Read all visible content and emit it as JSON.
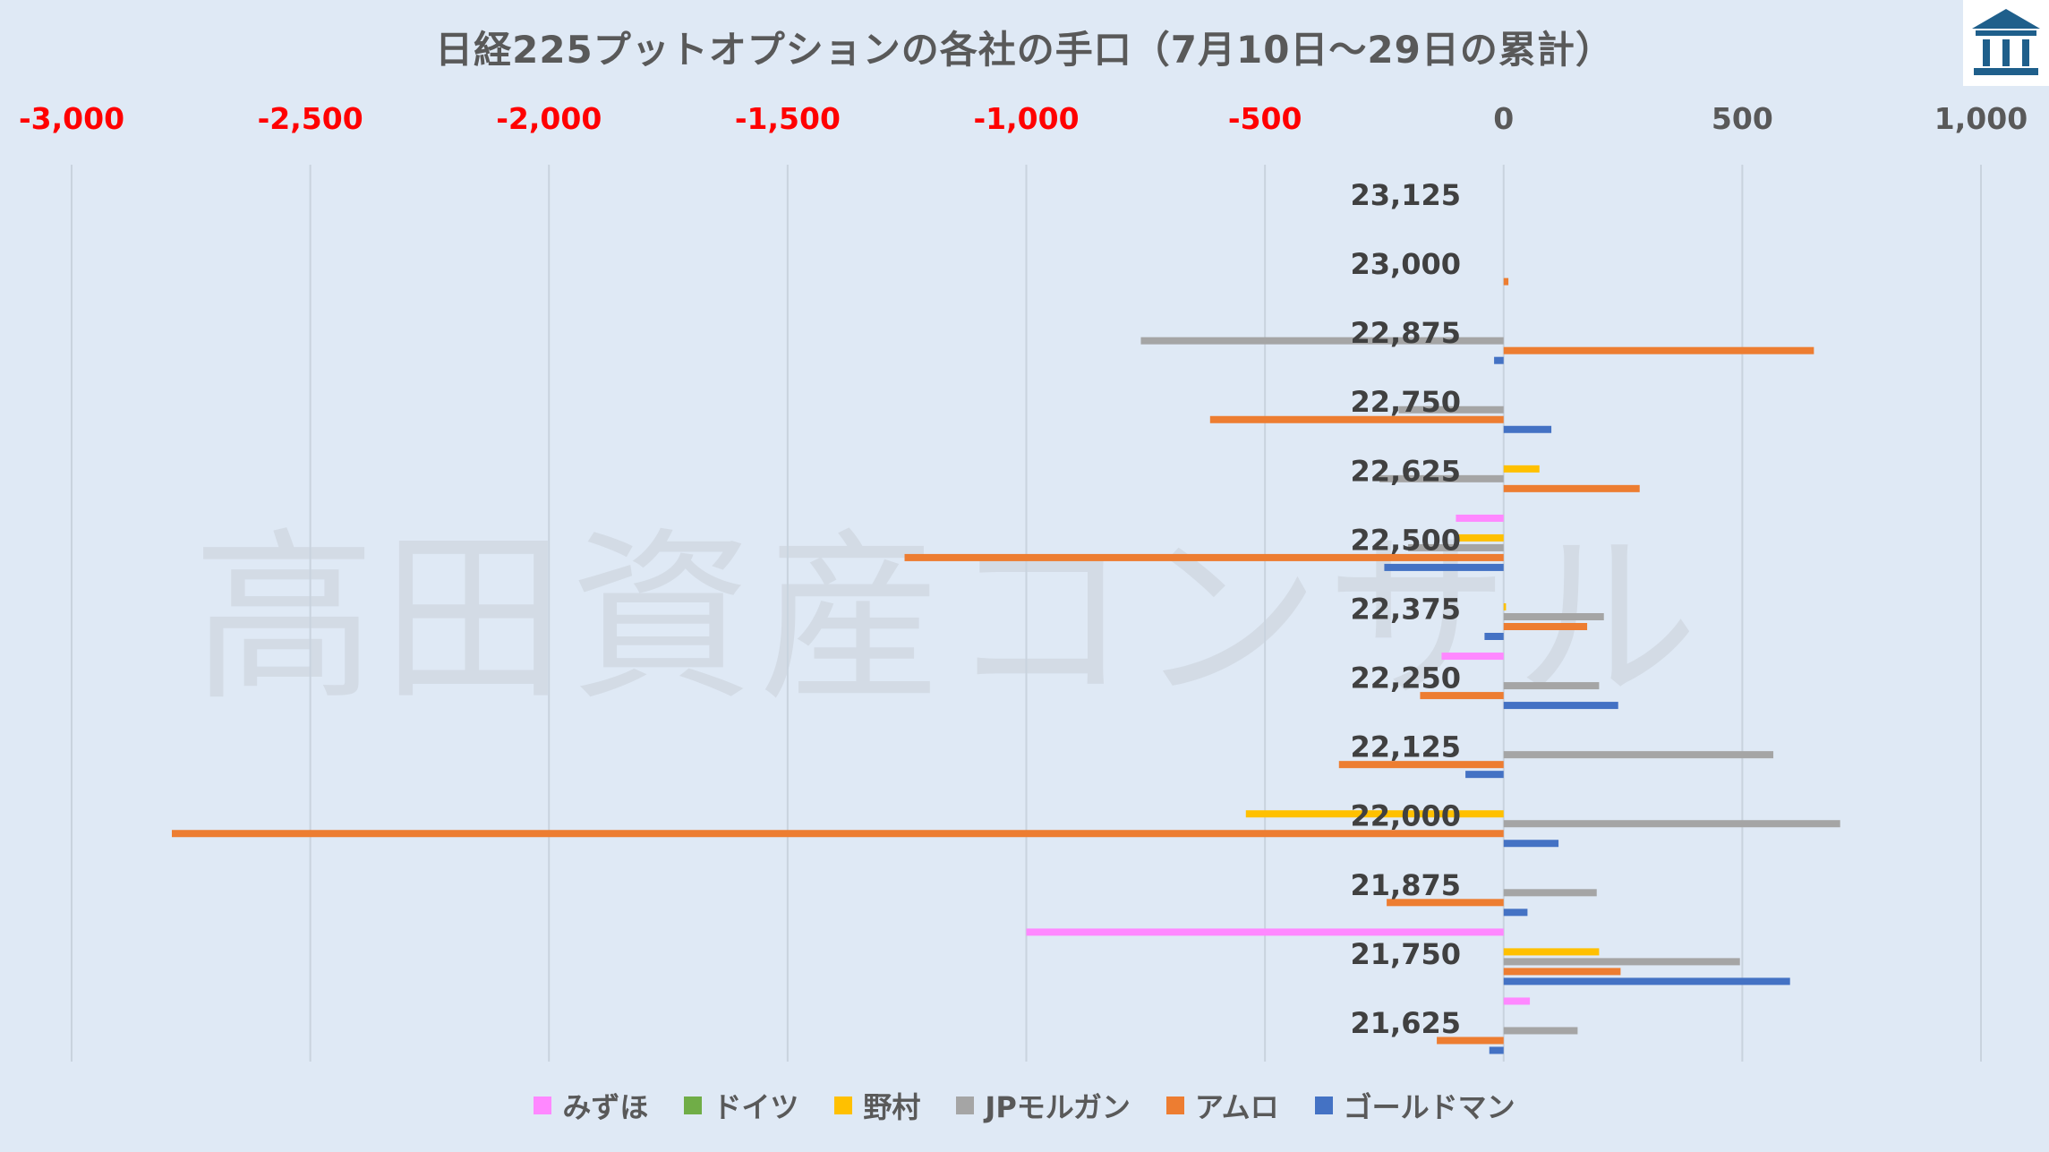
{
  "title": "日経225プットオプションの各社の手口（7月10日～29日の累計）",
  "watermark": "高田資産コンサル",
  "logo_icon": "building-logo-icon",
  "colors": {
    "background": "#dfe9f5",
    "grid": "#c9d3de",
    "negative_tick": "#ff0000",
    "positive_tick": "#595959"
  },
  "chart_data": {
    "type": "bar",
    "orientation": "horizontal",
    "title": "日経225プットオプションの各社の手口（7月10日～29日の累計）",
    "xlim": [
      -3000,
      1000
    ],
    "x_ticks": [
      -3000,
      -2500,
      -2000,
      -1500,
      -1000,
      -500,
      0,
      500,
      1000
    ],
    "x_tick_labels": [
      "-3,000",
      "-2,500",
      "-2,000",
      "-1,500",
      "-1,000",
      "-500",
      "0",
      "500",
      "1,000"
    ],
    "x_axis_position": "top",
    "grid": "vertical",
    "legend_position": "bottom",
    "categories": [
      "23,125",
      "23,000",
      "22,875",
      "22,750",
      "22,625",
      "22,500",
      "22,375",
      "22,250",
      "22,125",
      "22,000",
      "21,875",
      "21,750",
      "21,625"
    ],
    "series": [
      {
        "name": "みずほ",
        "color": "#ff88ff",
        "values": [
          0,
          0,
          0,
          0,
          0,
          -100,
          0,
          -130,
          0,
          0,
          0,
          -1000,
          55
        ]
      },
      {
        "name": "ドイツ",
        "color": "#70ad47",
        "values": [
          0,
          0,
          0,
          0,
          0,
          0,
          0,
          0,
          0,
          0,
          0,
          0,
          0
        ]
      },
      {
        "name": "野村",
        "color": "#ffc000",
        "values": [
          0,
          0,
          0,
          0,
          75,
          -100,
          5,
          0,
          0,
          -540,
          0,
          200,
          0
        ]
      },
      {
        "name": "JPモルガン",
        "color": "#a5a5a5",
        "values": [
          0,
          0,
          -760,
          -220,
          -260,
          -200,
          210,
          200,
          565,
          705,
          195,
          495,
          155
        ]
      },
      {
        "name": "アムロ",
        "color": "#ed7d31",
        "values": [
          0,
          10,
          650,
          -615,
          285,
          -1255,
          175,
          -175,
          -345,
          -2790,
          -245,
          245,
          -140
        ]
      },
      {
        "name": "ゴールドマン",
        "color": "#4472c4",
        "values": [
          0,
          0,
          -20,
          100,
          0,
          -250,
          -40,
          240,
          -80,
          115,
          50,
          600,
          -30
        ]
      }
    ]
  }
}
